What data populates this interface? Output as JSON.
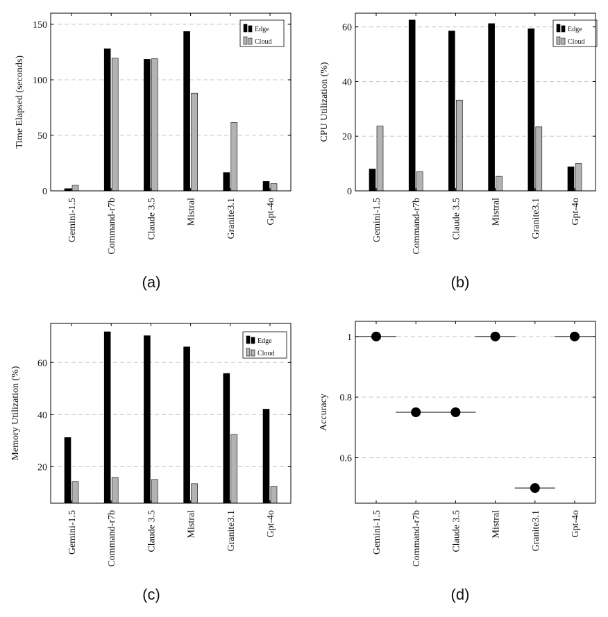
{
  "chart_data": [
    {
      "type": "bar",
      "caption": "(a)",
      "ylabel": "Time Elapsed (seconds)",
      "categories": [
        "Gemini-1.5",
        "Command-r7b",
        "Claude 3.5",
        "Mistral",
        "Granite3.1",
        "Gpt-4o"
      ],
      "series": [
        {
          "name": "Edge",
          "color": "#000000",
          "values": [
            2,
            128,
            118.5,
            143.5,
            16.5,
            8.5
          ]
        },
        {
          "name": "Cloud",
          "color": "#b3b3b3",
          "values": [
            5,
            119.5,
            119,
            88,
            61.5,
            6.5
          ]
        }
      ],
      "ylim": [
        0,
        160
      ],
      "yticks": [
        0,
        50,
        100,
        150
      ],
      "legend": "top-right",
      "grid": true
    },
    {
      "type": "bar",
      "caption": "(b)",
      "ylabel": "CPU Utilization (%)",
      "categories": [
        "Gemini-1.5",
        "Command-r7b",
        "Claude 3.5",
        "Mistral",
        "Granite3.1",
        "Gpt-4o"
      ],
      "series": [
        {
          "name": "Edge",
          "color": "#000000",
          "values": [
            8,
            62.5,
            58.5,
            61.2,
            59.3,
            8.8
          ]
        },
        {
          "name": "Cloud",
          "color": "#b3b3b3",
          "values": [
            23.7,
            7,
            33.2,
            5.3,
            23.4,
            10
          ]
        }
      ],
      "ylim": [
        0,
        65
      ],
      "yticks": [
        0,
        20,
        40,
        60
      ],
      "legend": "top-right",
      "grid": true
    },
    {
      "type": "bar",
      "caption": "(c)",
      "ylabel": "Memory Utilization (%)",
      "categories": [
        "Gemini-1.5",
        "Command-r7b",
        "Claude 3.5",
        "Mistral",
        "Granite3.1",
        "Gpt-4o"
      ],
      "series": [
        {
          "name": "Edge",
          "color": "#000000",
          "values": [
            31.2,
            71.8,
            70.3,
            66,
            55.8,
            42.1
          ]
        },
        {
          "name": "Cloud",
          "color": "#b3b3b3",
          "values": [
            14.3,
            15.9,
            15.1,
            13.5,
            32.4,
            12.5
          ]
        }
      ],
      "ylim": [
        6,
        75
      ],
      "yticks": [
        20,
        40,
        60
      ],
      "legend": "top-right",
      "grid": true
    },
    {
      "type": "scatter",
      "caption": "(d)",
      "ylabel": "Accuracy",
      "categories": [
        "Gemini-1.5",
        "Command-r7b",
        "Claude 3.5",
        "Mistral",
        "Granite3.1",
        "Gpt-4o"
      ],
      "values": [
        1,
        0.75,
        0.75,
        1,
        0.5,
        1
      ],
      "ylim": [
        0.45,
        1.05
      ],
      "yticks": [
        0.6,
        0.8,
        1
      ],
      "grid": true
    }
  ]
}
